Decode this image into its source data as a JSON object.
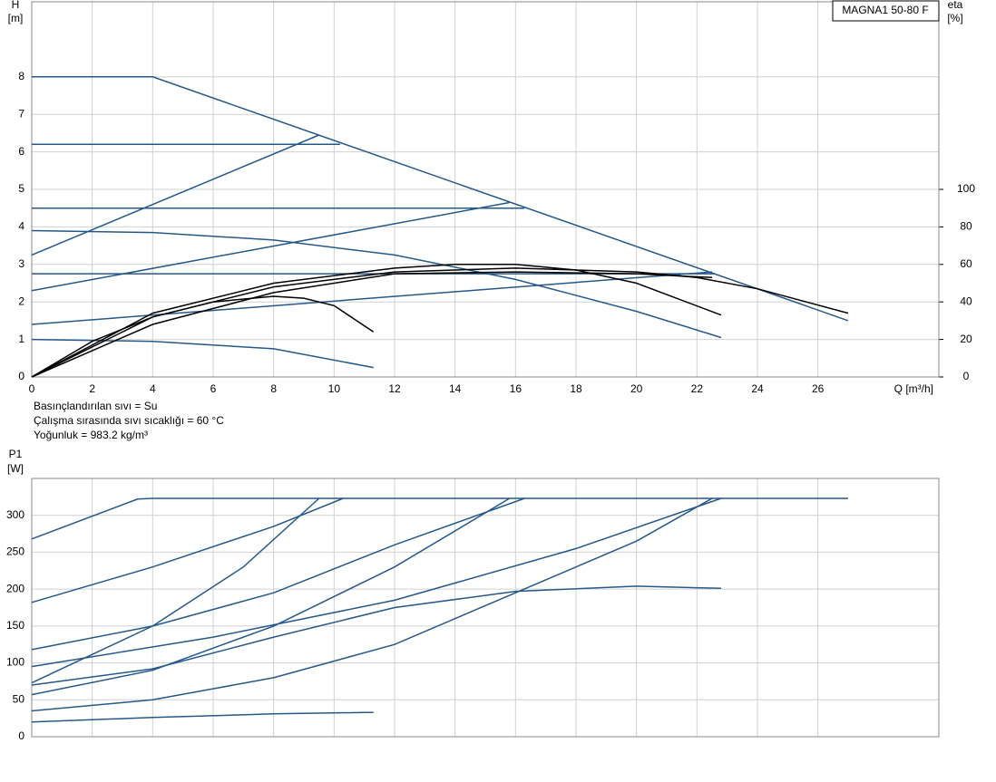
{
  "chart_data": [
    {
      "type": "line",
      "label_box": "MAGNA1 50-80 F",
      "ylabel": "H",
      "ylabel_unit": "[m]",
      "y2label": "eta",
      "y2label_unit": "[%]",
      "xlabel": "Q [m³/h]",
      "xlim": [
        0,
        30
      ],
      "xticks": [
        0,
        2,
        4,
        6,
        8,
        10,
        12,
        14,
        16,
        18,
        20,
        22,
        24,
        26
      ],
      "ylim": [
        0,
        10
      ],
      "yticks": [
        0,
        1,
        2,
        3,
        4,
        5,
        6,
        7,
        8
      ],
      "y2lim": [
        0,
        200
      ],
      "y2ticks": [
        0,
        20,
        40,
        60,
        80,
        100
      ],
      "grid": true,
      "series": [
        {
          "color": "#24588a",
          "x": [
            0,
            4,
            27
          ],
          "values": [
            8,
            8,
            1.5
          ]
        },
        {
          "color": "#24588a",
          "x": [
            0,
            10.2
          ],
          "values": [
            6.2,
            6.2
          ]
        },
        {
          "color": "#24588a",
          "x": [
            0,
            16.3
          ],
          "values": [
            4.5,
            4.5
          ]
        },
        {
          "color": "#24588a",
          "x": [
            0,
            22.6
          ],
          "values": [
            2.75,
            2.75
          ]
        },
        {
          "color": "#24588a",
          "x": [
            0,
            9.5
          ],
          "values": [
            3.25,
            6.45
          ]
        },
        {
          "color": "#24588a",
          "x": [
            0,
            15.8
          ],
          "values": [
            2.3,
            4.65
          ]
        },
        {
          "color": "#24588a",
          "x": [
            0,
            22.5
          ],
          "values": [
            1.4,
            2.8
          ]
        },
        {
          "color": "#24588a",
          "x": [
            0,
            4,
            8,
            12,
            16,
            20,
            22.8
          ],
          "values": [
            3.9,
            3.85,
            3.65,
            3.25,
            2.6,
            1.75,
            1.05
          ]
        },
        {
          "color": "#24588a",
          "x": [
            0,
            4,
            8,
            11.3
          ],
          "values": [
            1.0,
            0.95,
            0.75,
            0.25
          ]
        },
        {
          "color": "#000000",
          "axis": "y2",
          "x": [
            0,
            2,
            4,
            6,
            8,
            9,
            10,
            11.3
          ],
          "values": [
            0,
            19,
            32,
            40,
            43,
            42,
            38,
            24
          ]
        },
        {
          "color": "#000000",
          "axis": "y2",
          "x": [
            0,
            4,
            8,
            12,
            14,
            16,
            18,
            20,
            22.8
          ],
          "values": [
            0,
            34,
            50,
            58,
            60,
            60,
            57,
            50,
            33
          ]
        },
        {
          "color": "#000000",
          "axis": "y2",
          "x": [
            0,
            4,
            8,
            12,
            16,
            20,
            22,
            24,
            27
          ],
          "values": [
            0,
            32,
            48,
            56,
            58,
            56,
            53,
            47,
            34
          ]
        },
        {
          "color": "#000000",
          "axis": "y2",
          "x": [
            0,
            4,
            8,
            12,
            16,
            20,
            22.5
          ],
          "values": [
            0,
            28,
            45,
            55,
            56,
            55,
            53
          ]
        }
      ],
      "notes": [
        "Basınçlandırılan sıvı = Su",
        "Çalışma sırasında sıvı sıcaklığı = 60 °C",
        "Yoğunluk = 983.2 kg/m³"
      ]
    },
    {
      "type": "line",
      "ylabel": "P1",
      "ylabel_unit": "[W]",
      "xlim": [
        0,
        30
      ],
      "ylim": [
        0,
        350
      ],
      "yticks": [
        0,
        50,
        100,
        150,
        200,
        250,
        300
      ],
      "grid": true,
      "series": [
        {
          "color": "#24588a",
          "x": [
            0,
            3.5,
            4,
            27
          ],
          "values": [
            268,
            322,
            323,
            323
          ]
        },
        {
          "color": "#24588a",
          "x": [
            0,
            4,
            8,
            10.3
          ],
          "values": [
            182,
            230,
            285,
            323
          ]
        },
        {
          "color": "#24588a",
          "x": [
            0,
            4,
            7,
            9.5
          ],
          "values": [
            73,
            150,
            230,
            323
          ]
        },
        {
          "color": "#24588a",
          "x": [
            0,
            4,
            8,
            12,
            16.3
          ],
          "values": [
            118,
            150,
            195,
            260,
            323
          ]
        },
        {
          "color": "#24588a",
          "x": [
            0,
            4,
            8,
            12,
            15.8
          ],
          "values": [
            57,
            90,
            150,
            230,
            323
          ]
        },
        {
          "color": "#24588a",
          "x": [
            0,
            6,
            12,
            18,
            22.8
          ],
          "values": [
            95,
            135,
            185,
            255,
            323
          ]
        },
        {
          "color": "#24588a",
          "x": [
            0,
            4,
            8,
            12,
            16,
            20,
            22.5
          ],
          "values": [
            35,
            50,
            80,
            125,
            195,
            265,
            323
          ]
        },
        {
          "color": "#24588a",
          "x": [
            0,
            4,
            8,
            12,
            16,
            20,
            22.8
          ],
          "values": [
            70,
            92,
            135,
            175,
            197,
            204,
            201
          ]
        },
        {
          "color": "#24588a",
          "x": [
            0,
            4,
            8,
            11.3
          ],
          "values": [
            20,
            26,
            31,
            33
          ]
        }
      ]
    }
  ]
}
